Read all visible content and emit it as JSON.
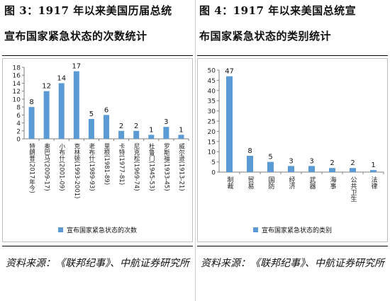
{
  "left": {
    "title_line1": "图 3：1917 年以来美国历届总统",
    "title_line2": "宣布国家紧急状态的次数统计",
    "source": "资料来源：《联邦纪事》、中航证券研究所",
    "legend": "宣布国家紧急状态的次数"
  },
  "right": {
    "title_line1": "图 4：1917 年以来美国总统宣",
    "title_line2": "布国家紧急状态的类别统计",
    "source": "资料来源：《联邦纪事》、中航证券研究所",
    "legend": "宣布国家紧急状态的类别"
  },
  "chart_data": [
    {
      "type": "bar",
      "categories": [
        "特朗普(2017年今)",
        "奥巴马(2009-17)",
        "小布什(2001-09)",
        "克林顿(1993-2001)",
        "老布什(1989-93)",
        "里根(1981-89)",
        "卡特(1977-81)",
        "尼克松(1969-74)",
        "杜鲁门(1945-53)",
        "罗斯福(1933-45)",
        "威尔逊(1913-21)"
      ],
      "series": [
        {
          "name": "宣布国家紧急状态的次数",
          "values": [
            8,
            12,
            14,
            17,
            5,
            6,
            2,
            2,
            1,
            3,
            1
          ]
        }
      ],
      "yticks": [
        "0",
        "2",
        "4",
        "6",
        "8",
        "10",
        "12",
        "14",
        "16",
        "18"
      ],
      "ylim": [
        0,
        18
      ],
      "grid": false,
      "legend": "bottom",
      "color": "#5b9bd5"
    },
    {
      "type": "bar",
      "categories": [
        "制裁",
        "贸易",
        "国防",
        "经济",
        "武器",
        "海事",
        "公共卫生",
        "法律"
      ],
      "series": [
        {
          "name": "宣布国家紧急状态的类别",
          "values": [
            47,
            8,
            5,
            3,
            3,
            2,
            2,
            1
          ]
        }
      ],
      "yticks": [
        "0",
        "5",
        "10",
        "15",
        "20",
        "25",
        "30",
        "35",
        "40",
        "45",
        "50"
      ],
      "ylim": [
        0,
        50
      ],
      "grid": false,
      "legend": "bottom",
      "color": "#5b9bd5"
    }
  ]
}
